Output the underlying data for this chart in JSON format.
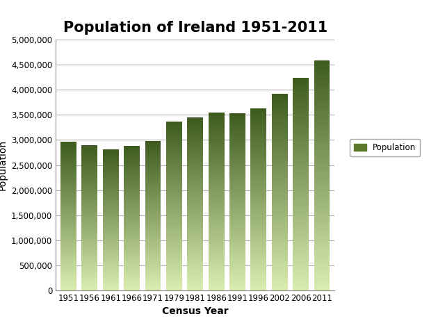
{
  "title": "Population of Ireland 1951-2011",
  "xlabel": "Census Year",
  "ylabel": "Population",
  "years": [
    "1951",
    "1956",
    "1961",
    "1966",
    "1971",
    "1979",
    "1981",
    "1986",
    "1991",
    "1996",
    "2002",
    "2006",
    "2011"
  ],
  "values": [
    2960000,
    2898000,
    2818000,
    2884000,
    2978000,
    3368000,
    3443000,
    3541000,
    3526000,
    3626000,
    3917000,
    4239000,
    4588000
  ],
  "ylim": [
    0,
    5000000
  ],
  "yticks": [
    0,
    500000,
    1000000,
    1500000,
    2000000,
    2500000,
    3000000,
    3500000,
    4000000,
    4500000,
    5000000
  ],
  "bar_top_color": "#3d5a1e",
  "bar_bottom_color": "#daedb0",
  "legend_label": "Population",
  "legend_color": "#5a7a2a",
  "title_fontsize": 15,
  "axis_label_fontsize": 10,
  "tick_fontsize": 8.5,
  "background_color": "#ffffff",
  "plot_bg_color": "#ffffff",
  "grid_color": "#b0b0b0"
}
